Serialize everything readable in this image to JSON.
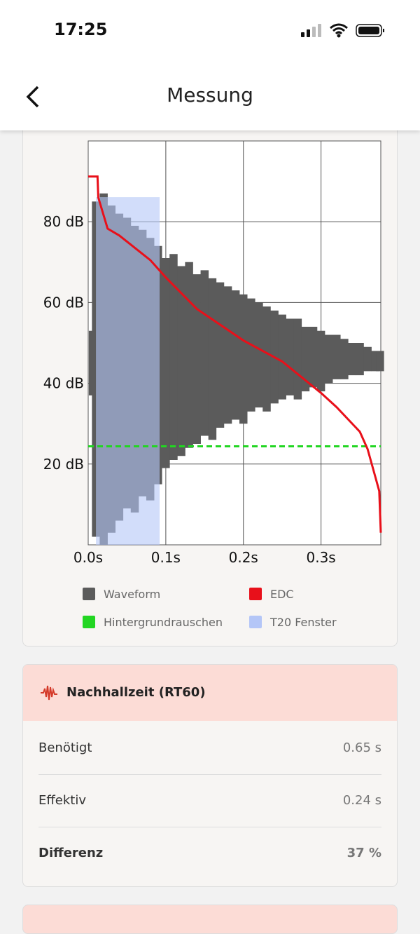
{
  "status_bar": {
    "time": "17:25"
  },
  "header": {
    "title": "Messung"
  },
  "chart_data": {
    "type": "line",
    "xlim": [
      0,
      0.377
    ],
    "ylim": [
      0,
      100
    ],
    "xticks": [
      {
        "value": 0,
        "label": "0.0s"
      },
      {
        "value": 0.1,
        "label": "0.1s"
      },
      {
        "value": 0.2,
        "label": "0.2s"
      },
      {
        "value": 0.3,
        "label": "0.3s"
      }
    ],
    "yticks": [
      {
        "value": 20,
        "label": "20 dB"
      },
      {
        "value": 40,
        "label": "40 dB"
      },
      {
        "value": 60,
        "label": "60 dB"
      },
      {
        "value": 80,
        "label": "80 dB"
      }
    ],
    "grid": true,
    "waveform": {
      "name": "Waveform",
      "color": "#5b5b5b",
      "x": [
        0.006,
        0.01,
        0.02,
        0.03,
        0.04,
        0.05,
        0.06,
        0.07,
        0.08,
        0.09,
        0.1,
        0.11,
        0.12,
        0.13,
        0.14,
        0.15,
        0.16,
        0.17,
        0.18,
        0.19,
        0.2,
        0.21,
        0.22,
        0.23,
        0.24,
        0.25,
        0.26,
        0.27,
        0.28,
        0.29,
        0.3,
        0.31,
        0.32,
        0.33,
        0.34,
        0.35,
        0.36,
        0.37,
        0.376
      ],
      "upper": [
        53,
        85,
        87,
        84,
        82,
        81,
        79,
        78,
        76,
        74,
        71,
        72,
        69,
        70,
        67,
        68,
        66,
        65,
        64,
        63,
        62,
        61,
        60,
        59,
        58,
        57,
        56,
        56,
        54,
        54,
        53,
        52,
        52,
        51,
        50,
        50,
        49,
        48,
        48
      ],
      "lower": [
        37,
        2,
        0,
        3,
        6,
        9,
        8,
        12,
        11,
        15,
        19,
        21,
        22,
        24,
        25,
        27,
        26,
        29,
        30,
        31,
        30,
        33,
        34,
        33,
        35,
        36,
        37,
        36,
        38,
        39,
        38,
        40,
        41,
        41,
        42,
        42,
        43,
        43,
        43
      ]
    },
    "edc": {
      "name": "EDC",
      "color": "#e8101a",
      "x": [
        0,
        0.012,
        0.013,
        0.025,
        0.04,
        0.08,
        0.1,
        0.14,
        0.2,
        0.25,
        0.3,
        0.32,
        0.35,
        0.36,
        0.37,
        0.375,
        0.377
      ],
      "values": [
        91.2,
        91.2,
        86,
        78.3,
        76.6,
        70.5,
        66.2,
        58.4,
        50.6,
        45.4,
        37.6,
        34.1,
        28,
        23.7,
        16.8,
        13.3,
        3
      ]
    },
    "noise": {
      "name": "Hintergrundrauschen",
      "color": "#22d622",
      "level": 24.4
    },
    "t20_window": {
      "name": "T20 Fenster",
      "color": "#b4c6f7",
      "x": [
        0.01,
        0.092
      ],
      "top": 86.1
    }
  },
  "rt60_card": {
    "title": "Nachhallzeit (RT60)",
    "rows": [
      {
        "label": "Benötigt",
        "value": "0.65 s"
      },
      {
        "label": "Effektiv",
        "value": "0.24 s"
      },
      {
        "label": "Differenz",
        "value": "37 %"
      }
    ]
  }
}
